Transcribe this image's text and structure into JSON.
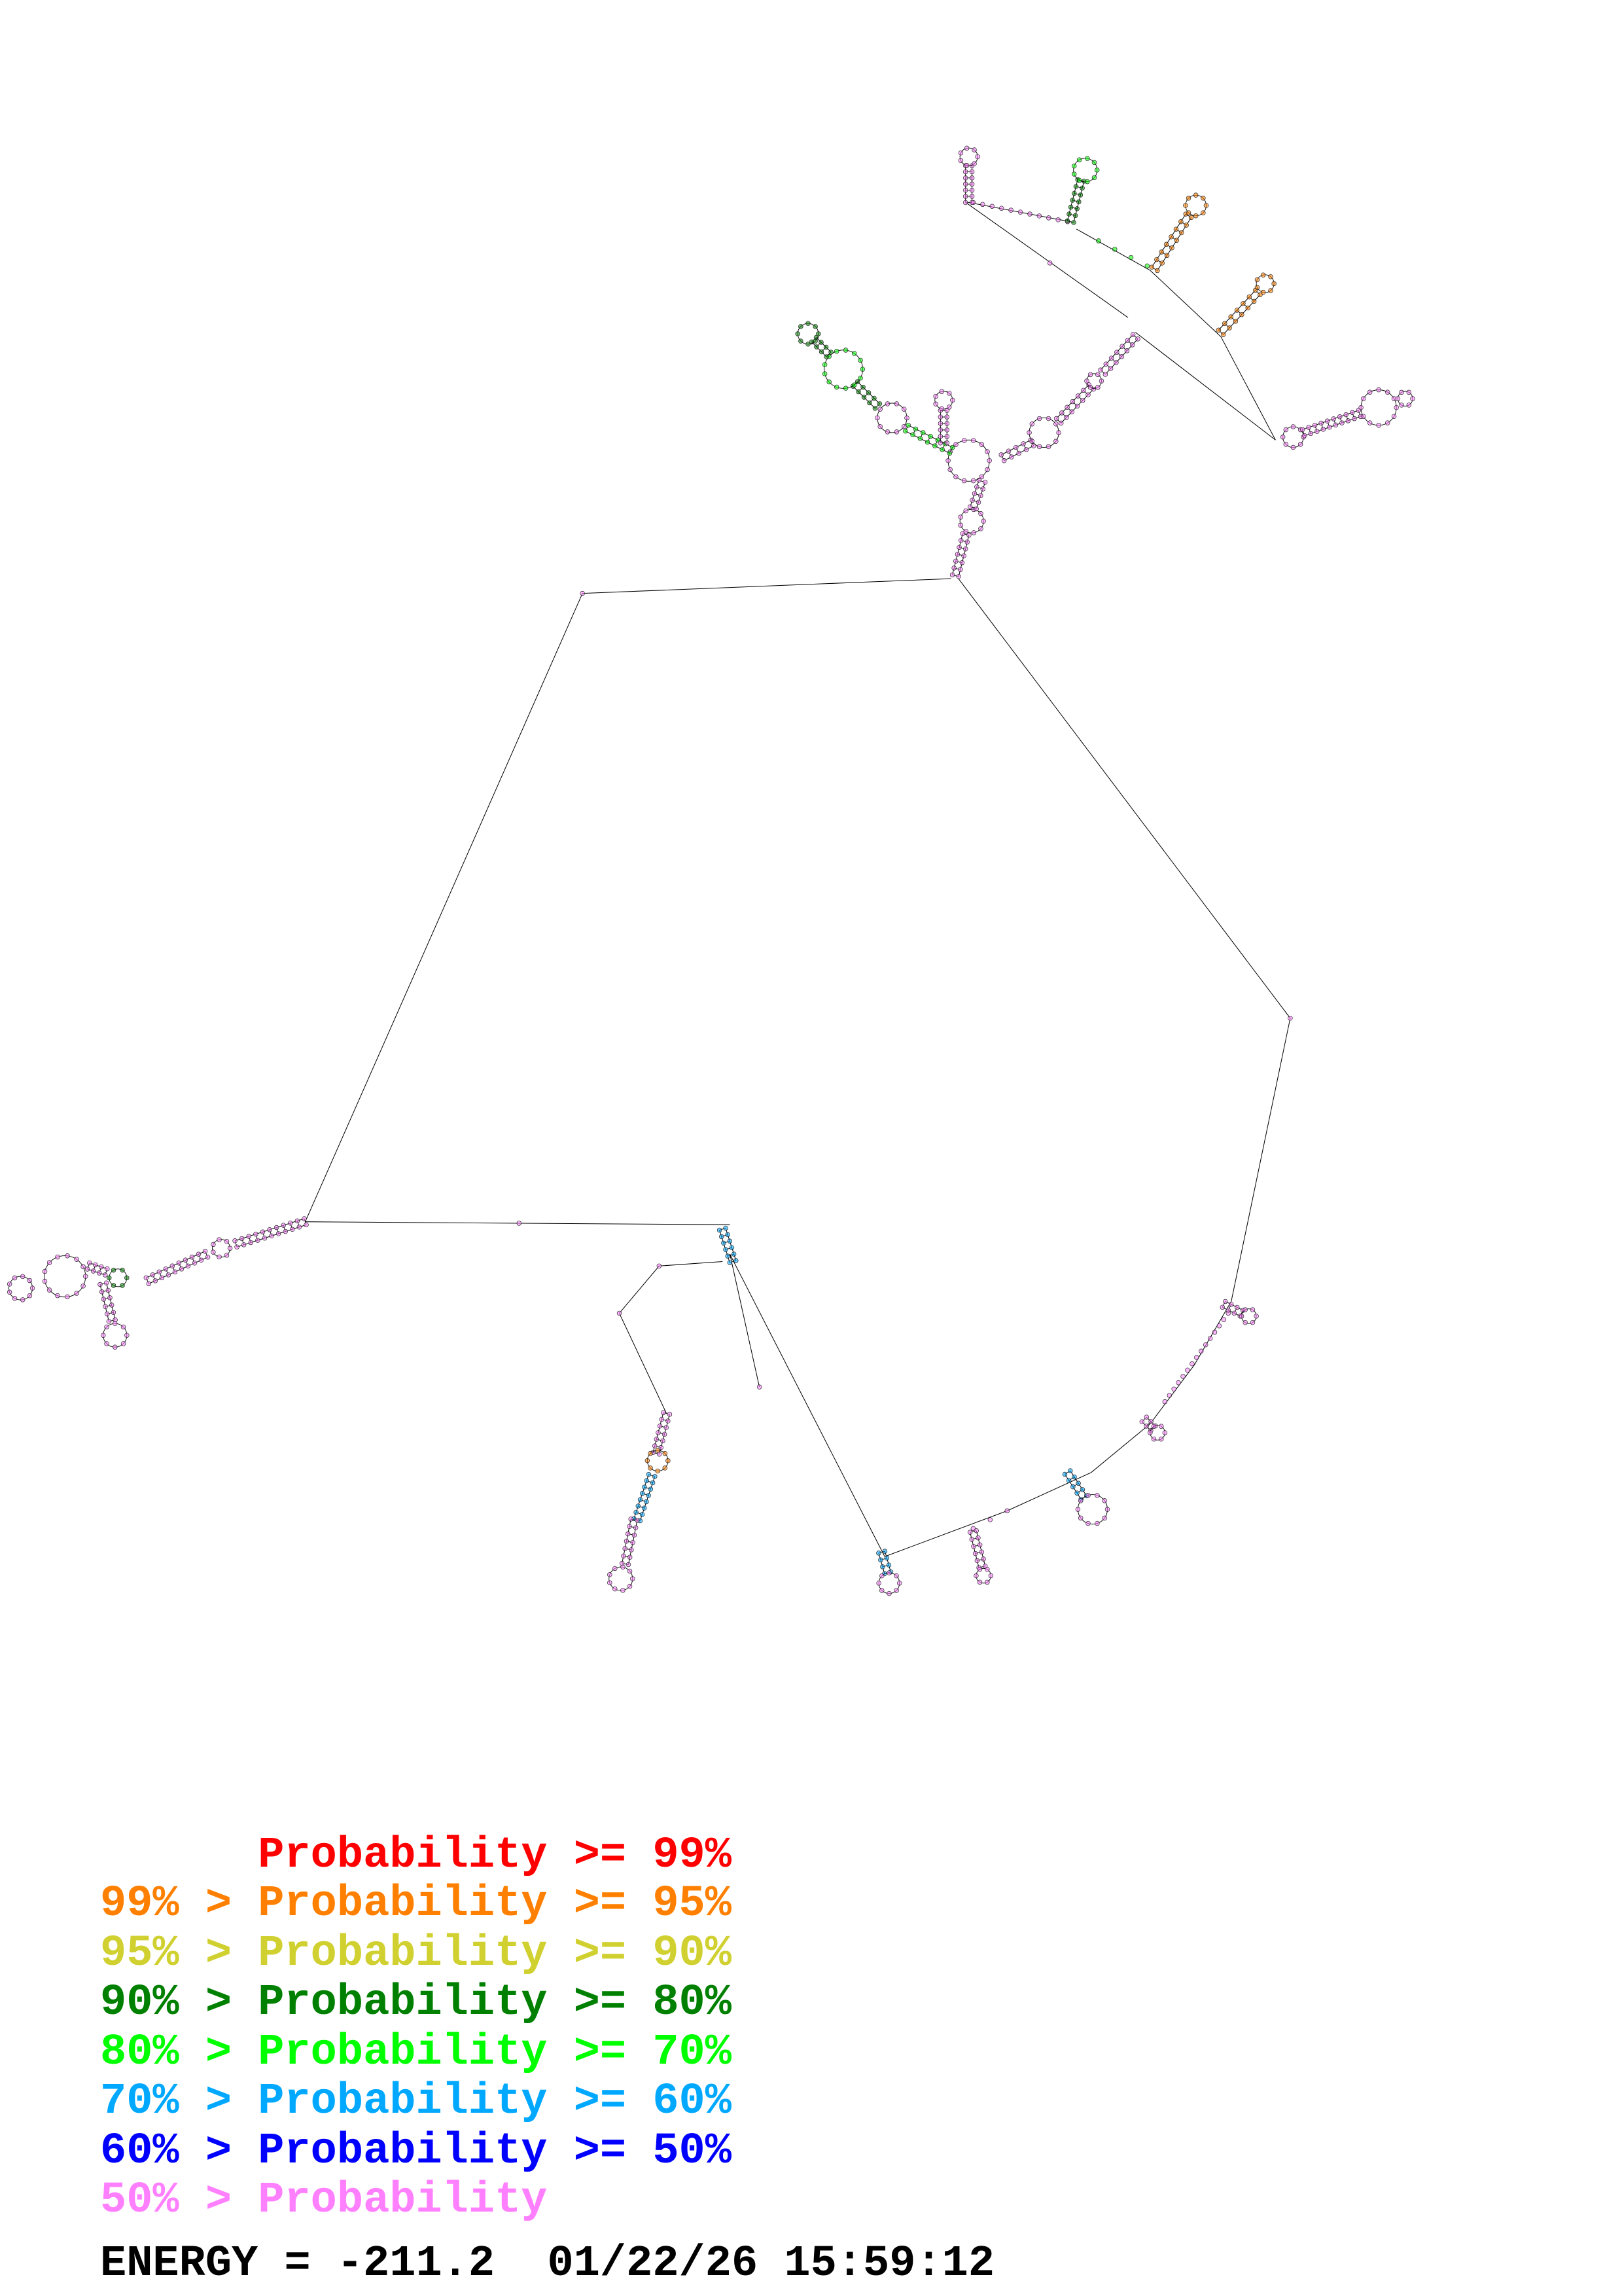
{
  "legend": [
    {
      "text": "      Probability >= 99%",
      "color": "#ff0000"
    },
    {
      "text": "99% > Probability >= 95%",
      "color": "#ff8000"
    },
    {
      "text": "95% > Probability >= 90%",
      "color": "#d0d030"
    },
    {
      "text": "90% > Probability >= 80%",
      "color": "#008000"
    },
    {
      "text": "80% > Probability >= 70%",
      "color": "#00ff00"
    },
    {
      "text": "70% > Probability >= 60%",
      "color": "#00a8ff"
    },
    {
      "text": "60% > Probability >= 50%",
      "color": "#0000ff"
    },
    {
      "text": "50% > Probability",
      "color": "#ff80ff"
    }
  ],
  "footer": {
    "energy_text": "ENERGY = -211.2  01/22/26 15:59:12"
  }
}
